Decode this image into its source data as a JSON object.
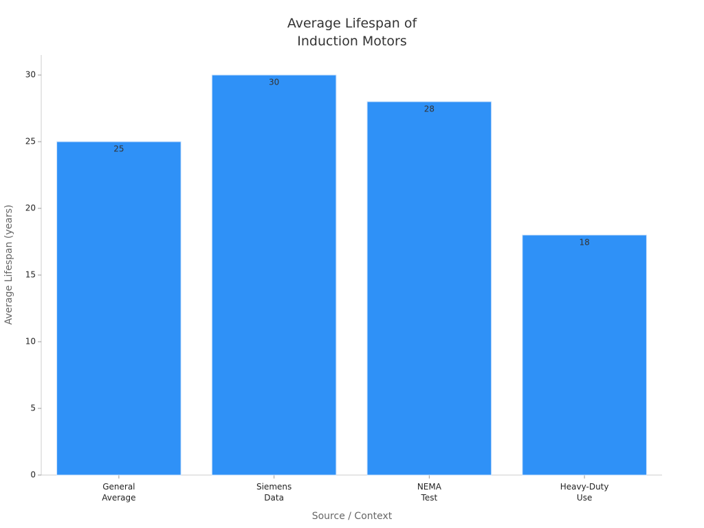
{
  "chart_data": {
    "type": "bar",
    "title": "Average Lifespan of\nInduction Motors",
    "x_label": "Source / Context",
    "y_label": "Average Lifespan (years)",
    "categories": [
      "General\nAverage",
      "Siemens\nData",
      "NEMA\nTest",
      "Heavy-Duty\nUse"
    ],
    "values": [
      25,
      30,
      28,
      18
    ],
    "color": "#2f91f7",
    "ylim": [
      0,
      31.5
    ],
    "yticks": [
      0,
      5,
      10,
      15,
      20,
      25,
      30
    ],
    "grid": false
  }
}
